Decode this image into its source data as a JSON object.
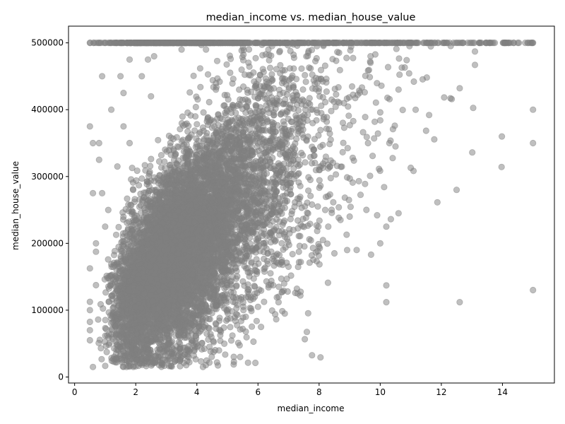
{
  "chart_data": {
    "type": "scatter",
    "title": "median_income vs. median_house_value",
    "xlabel": "median_income",
    "ylabel": "median_house_value",
    "xlim": [
      -0.2,
      15.7
    ],
    "ylim": [
      -9000,
      525000
    ],
    "xticks": [
      0,
      2,
      4,
      6,
      8,
      10,
      12,
      14
    ],
    "xtick_labels": [
      "0",
      "2",
      "4",
      "6",
      "8",
      "10",
      "12",
      "14"
    ],
    "yticks": [
      0,
      100000,
      200000,
      300000,
      400000,
      500000
    ],
    "ytick_labels": [
      "0",
      "100000",
      "200000",
      "300000",
      "400000",
      "500000"
    ],
    "grid": false,
    "marker_color": "#808080",
    "marker_alpha": 0.5,
    "points": [
      [
        0.5,
        500001
      ],
      [
        0.5,
        162500
      ],
      [
        0.5,
        375000
      ],
      [
        0.5,
        112500
      ],
      [
        0.5,
        100000
      ],
      [
        0.5,
        82500
      ],
      [
        0.5,
        70000
      ],
      [
        0.5,
        55000
      ],
      [
        0.6,
        15000
      ],
      [
        0.6,
        350000
      ],
      [
        0.6,
        275000
      ],
      [
        0.7,
        500001
      ],
      [
        0.7,
        200000
      ],
      [
        0.7,
        137500
      ],
      [
        0.7,
        187500
      ],
      [
        0.8,
        350000
      ],
      [
        0.8,
        325000
      ],
      [
        0.9,
        450000
      ],
      [
        0.9,
        275000
      ],
      [
        1.0,
        500001
      ],
      [
        1.0,
        225000
      ],
      [
        1.1,
        250000
      ],
      [
        1.2,
        400000
      ],
      [
        1.2,
        87500
      ],
      [
        1.3,
        125000
      ],
      [
        1.4,
        315000
      ],
      [
        1.5,
        450000
      ],
      [
        1.6,
        425000
      ],
      [
        1.6,
        375000
      ],
      [
        1.7,
        15000
      ],
      [
        1.8,
        475000
      ],
      [
        1.8,
        350000
      ],
      [
        2.0,
        16000
      ],
      [
        2.2,
        500001
      ],
      [
        2.2,
        450000
      ],
      [
        2.4,
        475000
      ],
      [
        2.5,
        420000
      ],
      [
        2.6,
        480000
      ],
      [
        2.8,
        22000
      ],
      [
        3.0,
        500001
      ],
      [
        3.3,
        40000
      ],
      [
        3.5,
        490000
      ],
      [
        3.7,
        40000
      ],
      [
        3.9,
        32000
      ],
      [
        4.2,
        15000
      ],
      [
        4.3,
        490000
      ],
      [
        5.1,
        87500
      ],
      [
        5.4,
        47500
      ],
      [
        5.5,
        72000
      ],
      [
        5.6,
        68000
      ],
      [
        5.6,
        90000
      ],
      [
        5.9,
        125000
      ],
      [
        6.0,
        105000
      ],
      [
        6.1,
        75000
      ],
      [
        6.2,
        112500
      ],
      [
        6.8,
        127500
      ],
      [
        7.0,
        165000
      ],
      [
        7.3,
        125000
      ],
      [
        7.4,
        172000
      ],
      [
        7.6,
        67500
      ],
      [
        7.8,
        193000
      ],
      [
        8.0,
        310000
      ],
      [
        8.2,
        250000
      ],
      [
        8.3,
        225000
      ],
      [
        8.5,
        185000
      ],
      [
        8.7,
        235000
      ],
      [
        8.9,
        213000
      ],
      [
        9.0,
        240000
      ],
      [
        9.3,
        293000
      ],
      [
        9.7,
        183000
      ],
      [
        9.9,
        242000
      ],
      [
        10.0,
        200000
      ],
      [
        10.2,
        225000
      ],
      [
        10.2,
        137000
      ],
      [
        10.2,
        112000
      ],
      [
        10.6,
        245000
      ],
      [
        11.0,
        313000
      ],
      [
        12.5,
        280000
      ],
      [
        12.6,
        112000
      ],
      [
        15.0,
        400000
      ],
      [
        15.0,
        350000
      ],
      [
        15.0,
        130000
      ],
      [
        15.0,
        500001
      ],
      [
        14.9,
        500001
      ],
      [
        14.5,
        500001
      ],
      [
        14.2,
        500001
      ],
      [
        13.5,
        500001
      ],
      [
        13.1,
        487000
      ],
      [
        13.1,
        467000
      ],
      [
        12.3,
        417000
      ],
      [
        12.6,
        432000
      ],
      [
        11.6,
        392000
      ],
      [
        11.1,
        442000
      ],
      [
        10.6,
        430000
      ],
      [
        10.3,
        350000
      ],
      [
        10.5,
        345000
      ],
      [
        10.0,
        396000
      ],
      [
        10.0,
        384000
      ],
      [
        9.8,
        357000
      ],
      [
        9.6,
        350000
      ]
    ],
    "cloud": {
      "count": 9000,
      "seed": 12345,
      "x_mode": 3.2,
      "x_lognormal_mu": 1.28,
      "x_lognormal_sigma": 0.42,
      "y_slope": 41800,
      "y_intercept": 45000,
      "y_noise_sd": 70000,
      "y_min": 14999,
      "y_max": 500001,
      "cap_fraction": 0.05,
      "x_max": 15.0
    }
  }
}
